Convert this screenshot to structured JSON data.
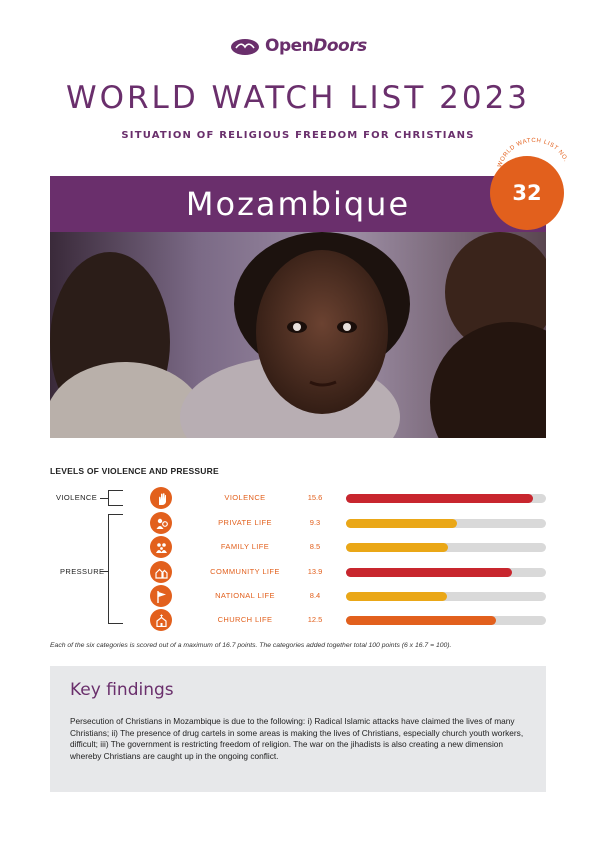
{
  "brand": {
    "name_part1": "Open",
    "name_part2": "Doors",
    "color": "#6a2f6c"
  },
  "header": {
    "title": "WORLD WATCH LIST 2023",
    "subtitle": "SITUATION OF RELIGIOUS FREEDOM FOR CHRISTIANS"
  },
  "country": {
    "name": "Mozambique"
  },
  "rank": {
    "label": "WORLD WATCH LIST NO.",
    "number": "32",
    "color": "#e2601d"
  },
  "levels": {
    "heading": "LEVELS OF VIOLENCE AND PRESSURE",
    "groups": {
      "violence": "VIOLENCE",
      "pressure": "PRESSURE"
    },
    "max_score": 16.7,
    "categories": [
      {
        "label": "VIOLENCE",
        "score": "15.6",
        "value": 15.6,
        "icon": "hand-icon",
        "color": "#c8262e"
      },
      {
        "label": "PRIVATE LIFE",
        "score": "9.3",
        "value": 9.3,
        "icon": "person-icon",
        "color": "#eaa717"
      },
      {
        "label": "FAMILY LIFE",
        "score": "8.5",
        "value": 8.5,
        "icon": "family-icon",
        "color": "#eaa717"
      },
      {
        "label": "COMMUNITY LIFE",
        "score": "13.9",
        "value": 13.9,
        "icon": "houses-icon",
        "color": "#c8262e"
      },
      {
        "label": "NATIONAL LIFE",
        "score": "8.4",
        "value": 8.4,
        "icon": "flag-icon",
        "color": "#eaa717"
      },
      {
        "label": "CHURCH LIFE",
        "score": "12.5",
        "value": 12.5,
        "icon": "church-icon",
        "color": "#e2601d"
      }
    ],
    "footnote": "Each of the six categories is scored out of a maximum of 16.7 points. The categories added together total 100 points (6 x 16.7 = 100)."
  },
  "key_findings": {
    "title": "Key findings",
    "text": "Persecution of Christians in Mozambique is due to the following: i) Radical Islamic attacks have claimed the lives of many Christians; ii) The presence of drug cartels in some areas is making the lives of Christians, especially church youth workers, difficult; iii) The government is restricting freedom of religion. The war on the jihadists is also creating a new dimension whereby Christians are caught up in the ongoing conflict."
  }
}
